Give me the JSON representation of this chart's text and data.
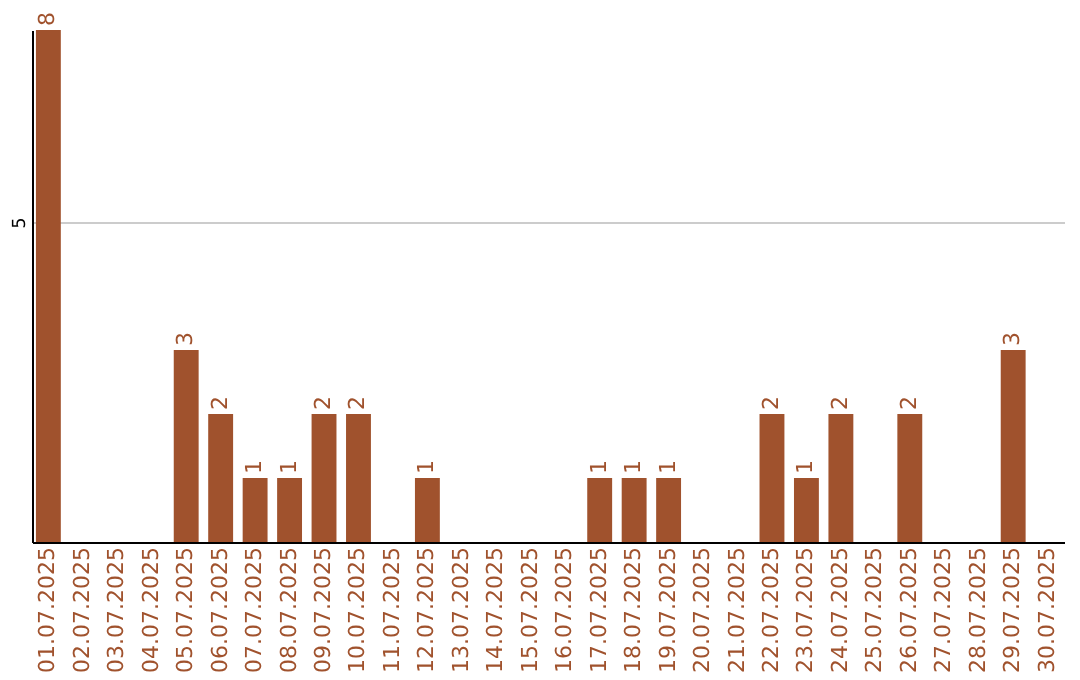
{
  "chart_data": {
    "type": "bar",
    "categories": [
      "01.07.2025",
      "02.07.2025",
      "03.07.2025",
      "04.07.2025",
      "05.07.2025",
      "06.07.2025",
      "07.07.2025",
      "08.07.2025",
      "09.07.2025",
      "10.07.2025",
      "11.07.2025",
      "12.07.2025",
      "13.07.2025",
      "14.07.2025",
      "15.07.2025",
      "16.07.2025",
      "17.07.2025",
      "18.07.2025",
      "19.07.2025",
      "20.07.2025",
      "21.07.2025",
      "22.07.2025",
      "23.07.2025",
      "24.07.2025",
      "25.07.2025",
      "26.07.2025",
      "27.07.2025",
      "28.07.2025",
      "29.07.2025",
      "30.07.2025"
    ],
    "values": [
      8,
      0,
      0,
      0,
      3,
      2,
      1,
      1,
      2,
      2,
      0,
      1,
      0,
      0,
      0,
      0,
      1,
      1,
      1,
      0,
      0,
      2,
      1,
      2,
      0,
      2,
      0,
      0,
      3,
      0
    ],
    "value_labels": [
      "8",
      null,
      null,
      null,
      "3",
      "2",
      "1",
      "1",
      "2",
      "2",
      null,
      "1",
      null,
      null,
      null,
      null,
      "1",
      "1",
      "1",
      null,
      null,
      "2",
      "1",
      "2",
      null,
      "2",
      null,
      null,
      "3",
      null
    ],
    "color": "#a0522d",
    "ylim": [
      0,
      8
    ],
    "yticks": [
      5
    ],
    "grid": "y"
  }
}
